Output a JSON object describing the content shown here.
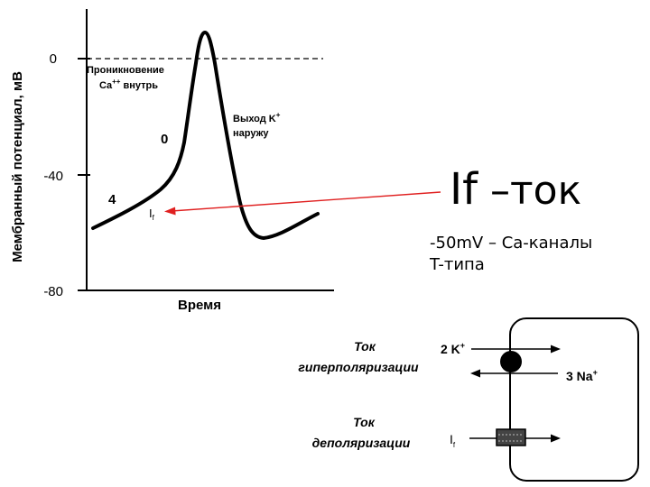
{
  "graph": {
    "y_axis_label": "Мембранный потенциал, мВ",
    "x_axis_label": "Время",
    "tick_labels": [
      "0",
      "-40",
      "-80"
    ],
    "annotation_ca": [
      "Проникновение",
      "Ca",
      "++",
      " внутрь"
    ],
    "annotation_k": [
      "Выход K",
      "+",
      "наружу"
    ],
    "phase_0": "0",
    "phase_4": "4",
    "if_label": "I",
    "if_sub": "f"
  },
  "note": {
    "title_main": "If",
    "title_rest": " –ток",
    "line1": "-50mV – Ca-каналы",
    "line2": "T-типа"
  },
  "cell": {
    "hyper_label": [
      "Ток",
      "гиперполяризации"
    ],
    "depol_label": [
      "Ток",
      "деполяризации"
    ],
    "k_label": "2 K",
    "k_sup": "+",
    "na_label": "3 Na",
    "na_sup": "+",
    "if_label": "I",
    "if_sub": "f"
  },
  "colors": {
    "arrow": "#e02020",
    "line": "#000000",
    "background": "#ffffff"
  }
}
